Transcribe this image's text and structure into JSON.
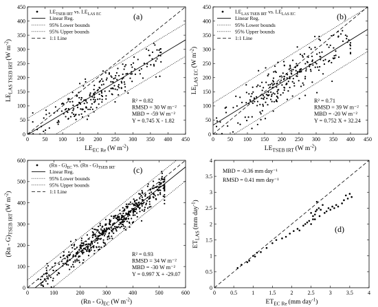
{
  "chart_data": [
    {
      "id": "a",
      "type": "scatter",
      "panel_letter": "(a)",
      "xlabel": "LE_EC Re (W m^-2)",
      "ylabel": "LE_LAS TSEB IRT (W m^-2)",
      "xlim": [
        0,
        450
      ],
      "ylim": [
        0,
        450
      ],
      "xticks": [
        0,
        50,
        100,
        150,
        200,
        250,
        300,
        350,
        400,
        450
      ],
      "yticks": [
        0,
        50,
        100,
        150,
        200,
        250,
        300,
        350,
        400,
        450
      ],
      "legend": {
        "placement": "top-left",
        "entries": [
          "LE_TSEB IRT vs. LE_LAS EC",
          "Linear Reg.",
          "95% Lower bounds",
          "95% Upper bounds",
          "1:1 Line"
        ]
      },
      "stats": [
        "R² = 0.82",
        "RMSD = 30 W m⁻²",
        "MBD = -59 W m⁻²",
        "Y = 0.745 X - 1.82"
      ],
      "regression": {
        "slope": 0.745,
        "intercept": -1.82
      },
      "bounds_offset": 58,
      "scatter_sd": 30,
      "n_points": 230,
      "x_range_points": [
        15,
        380
      ],
      "x_center": 210,
      "x_spread": 80,
      "seed": 11
    },
    {
      "id": "b",
      "type": "scatter",
      "panel_letter": "(b)",
      "xlabel": "LE_TSEB IRT (W m^-2)",
      "ylabel": "LE_LAS EC (W m^-2)",
      "xlim": [
        0,
        450
      ],
      "ylim": [
        0,
        450
      ],
      "xticks": [
        0,
        50,
        100,
        150,
        200,
        250,
        300,
        350,
        400,
        450
      ],
      "yticks": [
        0,
        50,
        100,
        150,
        200,
        250,
        300,
        350,
        400,
        450
      ],
      "legend": {
        "placement": "top-left",
        "entries": [
          "LE_LAS TSEB IRT vs. LE_LAS EC",
          "Linear Reg.",
          "95% Lower bounds",
          "95% Upper bounds",
          "1:1 Line"
        ]
      },
      "stats": [
        "R² = 0.71",
        "RMSD = 39 W m⁻²",
        "MBD = -20 W m⁻²",
        "Y = 0.752 X + 32.24"
      ],
      "regression": {
        "slope": 0.752,
        "intercept": 32.24
      },
      "bounds_offset": 78,
      "scatter_sd": 38,
      "n_points": 260,
      "x_range_points": [
        10,
        400
      ],
      "x_center": 210,
      "x_spread": 85,
      "seed": 23
    },
    {
      "id": "c",
      "type": "scatter",
      "panel_letter": "(c)",
      "xlabel": "(Rn - G)_EC (W m^-2)",
      "ylabel": "(Rn - G)_TSEB IRT (W m^-2)",
      "xlim": [
        0,
        600
      ],
      "ylim": [
        0,
        600
      ],
      "xticks": [
        0,
        100,
        200,
        300,
        400,
        500,
        600
      ],
      "yticks": [
        0,
        100,
        200,
        300,
        400,
        500,
        600
      ],
      "legend": {
        "placement": "top-left",
        "entries": [
          "(Rn - G)_EC vs. (Rn - G)_TSEB IRT",
          "Linear Reg.",
          "95% Lower bounds",
          "95% Upper bounds",
          "1:1 Line"
        ]
      },
      "stats": [
        "R² = 0.93",
        "RMSD = 34 W m⁻²",
        "MBD = -30 W m⁻²",
        "Y = 0.997 X + -29.07"
      ],
      "regression": {
        "slope": 0.997,
        "intercept": -29.07
      },
      "bounds_offset": 66,
      "scatter_sd": 30,
      "n_points": 520,
      "x_range_points": [
        40,
        520
      ],
      "x_center": 340,
      "x_spread": 110,
      "seed": 37
    },
    {
      "id": "d",
      "type": "scatter",
      "panel_letter": "(d)",
      "xlabel": "ET_EC Re (mm day^-1)",
      "ylabel": "ET_LAS (mm day^-1)",
      "xlim": [
        0,
        4
      ],
      "ylim": [
        0,
        4
      ],
      "xticks": [
        0,
        0.5,
        1,
        1.5,
        2,
        2.5,
        3,
        3.5,
        4
      ],
      "yticks": [
        0,
        0.5,
        1,
        1.5,
        2,
        2.5,
        3,
        3.5,
        4
      ],
      "stats": [
        "MBD = -0.36 mm day⁻¹",
        "RMSD = 0.41 mm day⁻¹"
      ],
      "points": [
        [
          0.6,
          0.62
        ],
        [
          0.7,
          0.72
        ],
        [
          0.85,
          0.8
        ],
        [
          0.9,
          0.85
        ],
        [
          1.0,
          1.0
        ],
        [
          1.05,
          0.98
        ],
        [
          1.1,
          1.1
        ],
        [
          1.2,
          1.12
        ],
        [
          1.35,
          1.25
        ],
        [
          1.5,
          1.4
        ],
        [
          1.6,
          1.5
        ],
        [
          1.75,
          1.55
        ],
        [
          1.85,
          1.6
        ],
        [
          1.95,
          1.7
        ],
        [
          2.05,
          1.78
        ],
        [
          2.15,
          1.85
        ],
        [
          2.2,
          1.8
        ],
        [
          2.3,
          1.95
        ],
        [
          2.35,
          2.0
        ],
        [
          2.4,
          2.05
        ],
        [
          2.45,
          2.1
        ],
        [
          2.5,
          2.0
        ],
        [
          2.55,
          2.15
        ],
        [
          2.55,
          2.25
        ],
        [
          2.6,
          2.3
        ],
        [
          2.6,
          2.15
        ],
        [
          2.62,
          2.4
        ],
        [
          2.65,
          2.7
        ],
        [
          2.7,
          2.5
        ],
        [
          2.72,
          2.25
        ],
        [
          2.75,
          2.45
        ],
        [
          2.8,
          2.6
        ],
        [
          2.85,
          2.35
        ],
        [
          2.9,
          2.4
        ],
        [
          2.95,
          2.5
        ],
        [
          3.0,
          2.45
        ],
        [
          3.05,
          2.55
        ],
        [
          3.1,
          2.5
        ],
        [
          3.15,
          2.6
        ],
        [
          3.2,
          2.55
        ],
        [
          3.3,
          2.65
        ],
        [
          3.35,
          2.75
        ],
        [
          3.4,
          2.9
        ],
        [
          3.45,
          2.8
        ],
        [
          3.5,
          2.95
        ],
        [
          3.55,
          2.85
        ],
        [
          2.5,
          2.35
        ],
        [
          2.65,
          2.45
        ]
      ]
    }
  ]
}
